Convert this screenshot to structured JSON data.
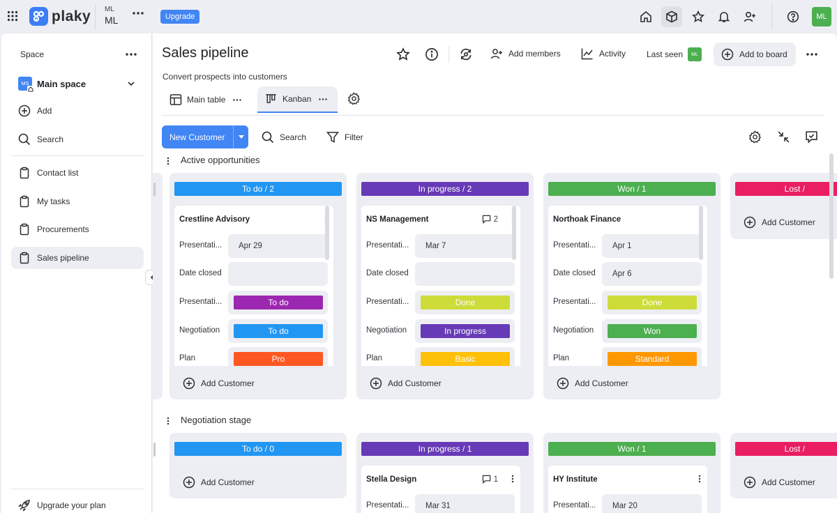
{
  "topbar": {
    "logo_text": "plaky",
    "workspace_abbr": "ML",
    "workspace_name": "ML",
    "upgrade_label": "Upgrade",
    "avatar_initials": "ML"
  },
  "sidebar": {
    "section_label": "Space",
    "space_badge": "MS",
    "space_name": "Main space",
    "add_label": "Add",
    "search_label": "Search",
    "items": [
      {
        "label": "Contact list"
      },
      {
        "label": "My tasks"
      },
      {
        "label": "Procurements"
      },
      {
        "label": "Sales pipeline"
      }
    ],
    "upgrade_plan_label": "Upgrade your plan"
  },
  "board": {
    "title": "Sales pipeline",
    "description": "Convert prospects into customers",
    "add_members_label": "Add members",
    "activity_label": "Activity",
    "last_seen_label": "Last seen",
    "last_seen_avatar": "ML",
    "add_to_board_label": "Add to board",
    "views": [
      {
        "label": "Main table"
      },
      {
        "label": "Kanban"
      }
    ]
  },
  "toolbar": {
    "new_item_label": "New Customer",
    "search_label": "Search",
    "filter_label": "Filter"
  },
  "colors": {
    "todo": "#2196f3",
    "in_progress": "#673ab7",
    "won": "#4caf50",
    "lost": "#e91e63",
    "todo_pill": "#9c27b0",
    "done": "#cddc39",
    "pro": "#ff5722",
    "basic": "#ffc107",
    "standard": "#ff9800",
    "primary_button": "#4285f4",
    "avatar": "#4caf50"
  },
  "field_labels": {
    "presentation_date": "Presentati...",
    "date_closed": "Date closed",
    "presentation_status": "Presentati...",
    "negotiation": "Negotiation",
    "plan": "Plan"
  },
  "add_customer_label": "Add Customer",
  "groups": [
    {
      "title": "Active opportunities",
      "columns": [
        {
          "header": "To do / 2",
          "card": {
            "title": "Crestline Advisory",
            "comments": "",
            "presentation_date": "Apr 29",
            "date_closed": "",
            "presentation_status": "To do",
            "negotiation": "To do",
            "plan": "Pro"
          }
        },
        {
          "header": "In progress / 2",
          "card": {
            "title": "NS Management",
            "comments": "2",
            "presentation_date": "Mar 7",
            "date_closed": "",
            "presentation_status": "Done",
            "negotiation": "In progress",
            "plan": "Basic"
          }
        },
        {
          "header": "Won / 1",
          "card": {
            "title": "Northoak Finance",
            "comments": "",
            "presentation_date": "Apr 1",
            "date_closed": "Apr 6",
            "presentation_status": "Done",
            "negotiation": "Won",
            "plan": "Standard"
          }
        },
        {
          "header": "Lost /"
        }
      ]
    },
    {
      "title": "Negotiation stage",
      "columns": [
        {
          "header": "To do / 0"
        },
        {
          "header": "In progress / 1",
          "card": {
            "title": "Stella Design",
            "comments": "1",
            "presentation_date": "Mar 31"
          }
        },
        {
          "header": "Won / 1",
          "card": {
            "title": "HY Institute",
            "comments": "",
            "presentation_date": "Mar 20"
          }
        },
        {
          "header": "Lost /"
        }
      ]
    }
  ]
}
